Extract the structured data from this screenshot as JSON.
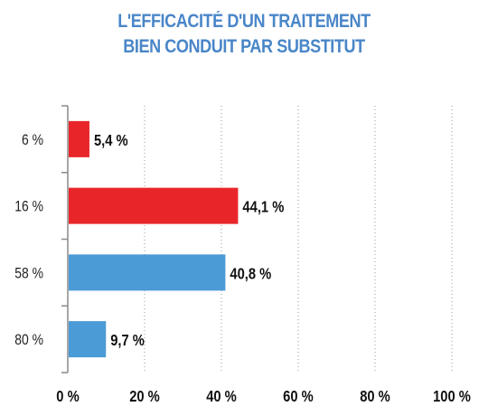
{
  "chart_data": {
    "type": "bar",
    "orientation": "horizontal",
    "title_lines": [
      "L'EFFICACITÉ D'UN TRAITEMENT",
      "BIEN CONDUIT PAR SUBSTITUT"
    ],
    "categories": [
      "6 %",
      "16 %",
      "58 %",
      "80 %"
    ],
    "values": [
      5.4,
      44.1,
      40.8,
      9.7
    ],
    "value_labels": [
      "5,4 %",
      "44,1 %",
      "40,8 %",
      "9,7 %"
    ],
    "bar_colors": [
      "#e8262a",
      "#e8262a",
      "#4a9bd6",
      "#4a9bd6"
    ],
    "x_ticks": [
      0,
      20,
      40,
      60,
      80,
      100
    ],
    "x_tick_labels": [
      "0 %",
      "20 %",
      "40 %",
      "60 %",
      "80 %",
      "100 %"
    ],
    "xlim": [
      0,
      100
    ],
    "grid": "vertical-dashed",
    "legend": "none"
  }
}
